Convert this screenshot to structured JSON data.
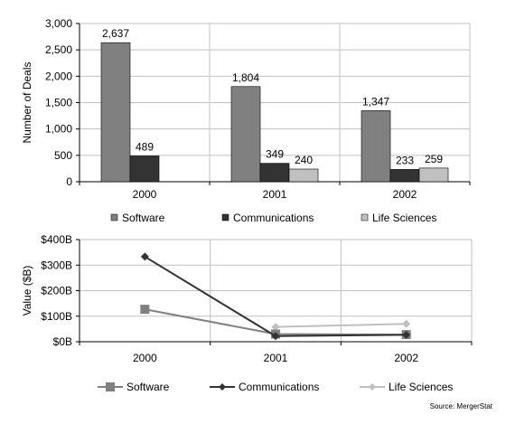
{
  "colors": {
    "software": "#808080",
    "communications": "#333333",
    "life_sciences": "#c0c0c0",
    "grid": "#c0c0c0",
    "axis": "#000000"
  },
  "source": "Source: MergerStat",
  "chart_data": [
    {
      "type": "bar",
      "categories": [
        "2000",
        "2001",
        "2002"
      ],
      "ylabel": "Number of Deals",
      "ylim": [
        0,
        3000
      ],
      "ytick_step": 500,
      "ytick_labels": [
        "0",
        "500",
        "1,000",
        "1,500",
        "2,000",
        "2,500",
        "3,000"
      ],
      "grid": true,
      "legend_position": "bottom",
      "series": [
        {
          "name": "Software",
          "values": [
            2637,
            1804,
            1347
          ],
          "labels": [
            "2,637",
            "1,804",
            "1,347"
          ],
          "color": "#808080"
        },
        {
          "name": "Communications",
          "values": [
            489,
            349,
            233
          ],
          "labels": [
            "489",
            "349",
            "233"
          ],
          "color": "#333333"
        },
        {
          "name": "Life Sciences",
          "values": [
            null,
            240,
            259
          ],
          "labels": [
            "",
            "240",
            "259"
          ],
          "color": "#c0c0c0"
        }
      ]
    },
    {
      "type": "line",
      "categories": [
        "2000",
        "2001",
        "2002"
      ],
      "ylabel": "Value ($B)",
      "ylim": [
        0,
        400
      ],
      "ytick_step": 100,
      "ytick_labels": [
        "$0B",
        "$100B",
        "$200B",
        "$300B",
        "$400B"
      ],
      "grid": true,
      "legend_position": "bottom",
      "series": [
        {
          "name": "Software",
          "values": [
            127,
            30,
            28
          ],
          "marker": "square",
          "color": "#808080"
        },
        {
          "name": "Communications",
          "values": [
            333,
            22,
            27
          ],
          "marker": "diamond",
          "color": "#333333"
        },
        {
          "name": "Life Sciences",
          "values": [
            null,
            58,
            70
          ],
          "marker": "diamond",
          "color": "#c0c0c0"
        }
      ]
    }
  ]
}
